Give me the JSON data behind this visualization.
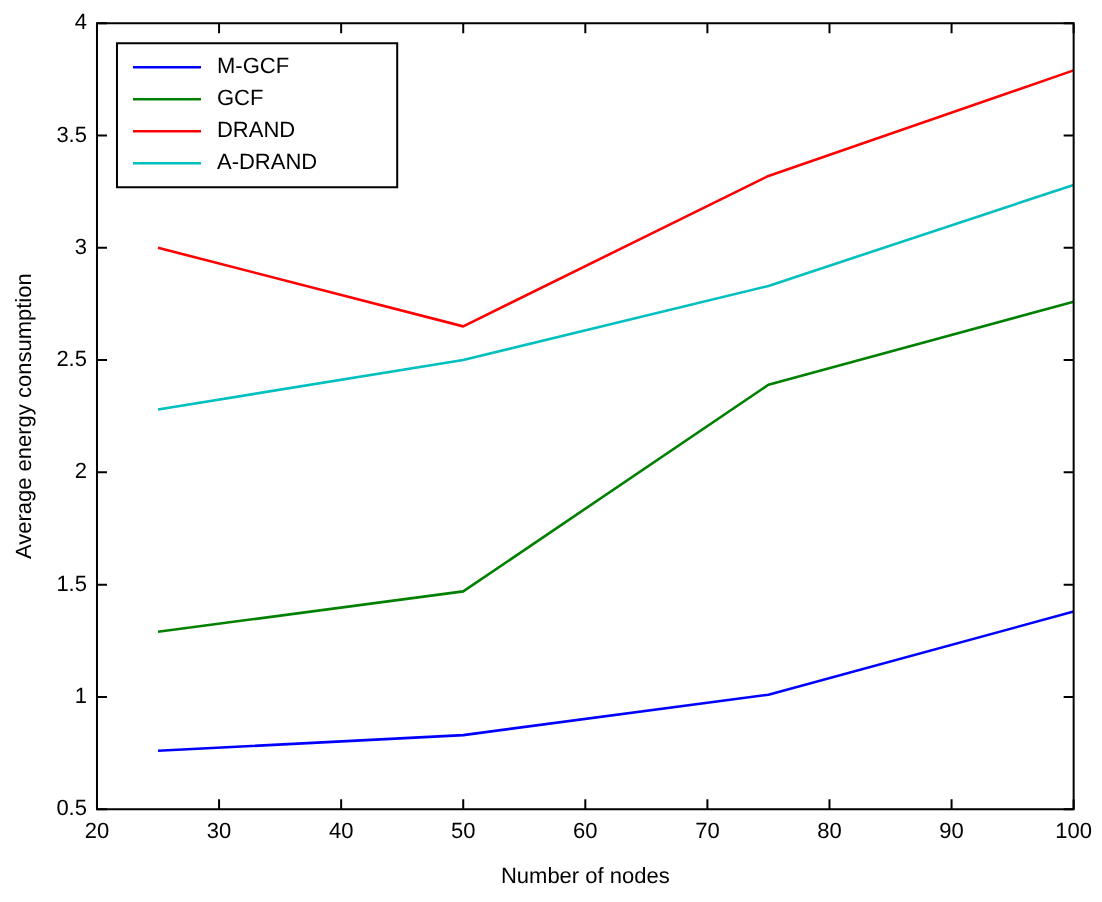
{
  "chart_data": {
    "type": "line",
    "xlabel": "Number of nodes",
    "ylabel": "Average energy consumption",
    "x": [
      25,
      50,
      75,
      100
    ],
    "series": [
      {
        "name": "M-GCF",
        "color": "#0000ff",
        "values": [
          0.76,
          0.83,
          1.01,
          1.38
        ]
      },
      {
        "name": "GCF",
        "color": "#008000",
        "values": [
          1.29,
          1.47,
          2.39,
          2.76
        ]
      },
      {
        "name": "DRAND",
        "color": "#ff0000",
        "values": [
          3.0,
          2.65,
          3.32,
          3.79
        ]
      },
      {
        "name": "A-DRAND",
        "color": "#00bfbf",
        "values": [
          2.28,
          2.5,
          2.83,
          3.28
        ]
      }
    ],
    "xlim": [
      20,
      100
    ],
    "xticks": [
      20,
      30,
      40,
      50,
      60,
      70,
      80,
      90,
      100
    ],
    "ylim": [
      0.5,
      4
    ],
    "yticks": [
      0.5,
      1,
      1.5,
      2,
      2.5,
      3,
      3.5,
      4
    ],
    "grid": false,
    "legend": "top left",
    "marker": "none",
    "line_style": "solid"
  }
}
